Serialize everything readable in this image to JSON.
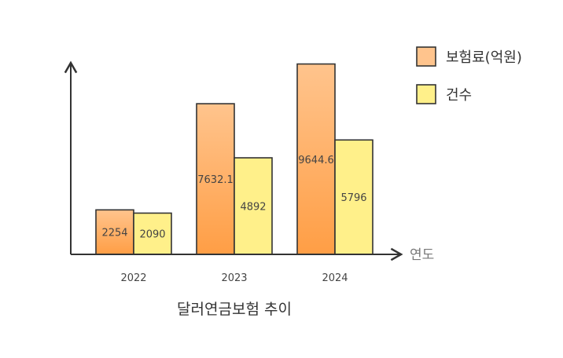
{
  "chart_data": {
    "type": "bar",
    "title": "달러연금보험 추이",
    "xlabel": "연도",
    "ylabel": "",
    "categories": [
      "2022",
      "2023",
      "2024"
    ],
    "series": [
      {
        "name": "보험료(억원)",
        "values": [
          2254,
          7632.1,
          9644.6
        ]
      },
      {
        "name": "건수",
        "values": [
          2090,
          4892,
          5796
        ]
      }
    ],
    "ylim": [
      0,
      10500
    ],
    "grid": false,
    "legend": "top-right",
    "colors": {
      "series_0_top": "#ffc48d",
      "series_0_bottom": "#ff9e45",
      "series_1_top": "#fff08a",
      "series_1_bottom": "#fff08a",
      "stroke": "#333333",
      "axis": "#333333"
    }
  }
}
